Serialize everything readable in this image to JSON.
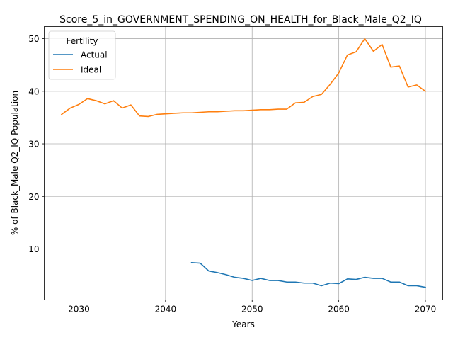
{
  "chart_data": {
    "type": "line",
    "title": "Score_5_in_GOVERNMENT_SPENDING_ON_HEALTH_for_Black_Male_Q2_IQ",
    "xlabel": "Years",
    "ylabel": "% of Black_Male Q2_IQ Population",
    "xlim": [
      2026,
      2072
    ],
    "ylim": [
      0.3,
      52.3
    ],
    "x_ticks": [
      2030,
      2040,
      2050,
      2060,
      2070
    ],
    "y_ticks": [
      10,
      20,
      30,
      40,
      50
    ],
    "grid": true,
    "legend": {
      "title": "Fertility",
      "placement": "upper-left"
    },
    "series": [
      {
        "name": "Actual",
        "color": "#1f77b4",
        "x": [
          2043,
          2044,
          2045,
          2046,
          2047,
          2048,
          2049,
          2050,
          2051,
          2052,
          2053,
          2054,
          2055,
          2056,
          2057,
          2058,
          2059,
          2060,
          2061,
          2062,
          2063,
          2064,
          2065,
          2066,
          2067,
          2068,
          2069,
          2070
        ],
        "y": [
          7.4,
          7.3,
          5.8,
          5.5,
          5.1,
          4.6,
          4.4,
          4.0,
          4.4,
          4.0,
          4.0,
          3.7,
          3.7,
          3.5,
          3.5,
          3.0,
          3.5,
          3.4,
          4.3,
          4.2,
          4.6,
          4.4,
          4.4,
          3.7,
          3.7,
          3.0,
          3.0,
          2.7
        ]
      },
      {
        "name": "Ideal",
        "color": "#ff7f0e",
        "x": [
          2028,
          2029,
          2030,
          2031,
          2032,
          2033,
          2034,
          2035,
          2036,
          2037,
          2038,
          2039,
          2040,
          2041,
          2042,
          2043,
          2044,
          2045,
          2046,
          2047,
          2048,
          2049,
          2050,
          2051,
          2052,
          2053,
          2054,
          2055,
          2056,
          2057,
          2058,
          2059,
          2060,
          2061,
          2062,
          2063,
          2064,
          2065,
          2066,
          2067,
          2068,
          2069,
          2070
        ],
        "y": [
          35.6,
          36.8,
          37.5,
          38.6,
          38.2,
          37.6,
          38.2,
          36.8,
          37.4,
          35.3,
          35.2,
          35.6,
          35.7,
          35.8,
          35.9,
          35.9,
          36.0,
          36.1,
          36.1,
          36.2,
          36.3,
          36.3,
          36.4,
          36.5,
          36.5,
          36.6,
          36.6,
          37.8,
          37.9,
          39.0,
          39.4,
          41.3,
          43.5,
          46.9,
          47.5,
          50.0,
          47.6,
          48.9,
          44.6,
          44.8,
          40.8,
          41.2,
          40.0
        ]
      }
    ]
  }
}
